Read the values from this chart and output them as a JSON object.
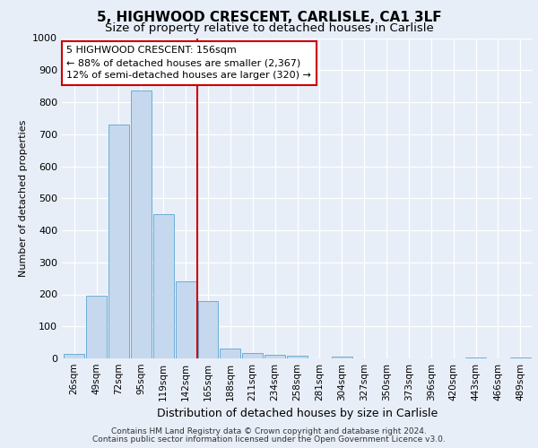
{
  "title1": "5, HIGHWOOD CRESCENT, CARLISLE, CA1 3LF",
  "title2": "Size of property relative to detached houses in Carlisle",
  "xlabel": "Distribution of detached houses by size in Carlisle",
  "ylabel": "Number of detached properties",
  "categories": [
    "26sqm",
    "49sqm",
    "72sqm",
    "95sqm",
    "119sqm",
    "142sqm",
    "165sqm",
    "188sqm",
    "211sqm",
    "234sqm",
    "258sqm",
    "281sqm",
    "304sqm",
    "327sqm",
    "350sqm",
    "373sqm",
    "396sqm",
    "420sqm",
    "443sqm",
    "466sqm",
    "489sqm"
  ],
  "values": [
    13,
    195,
    730,
    835,
    450,
    240,
    178,
    30,
    18,
    10,
    7,
    0,
    5,
    0,
    0,
    0,
    0,
    0,
    4,
    0,
    4
  ],
  "bar_color": "#c5d8ee",
  "bar_edgecolor": "#6baed6",
  "annotation_line1": "5 HIGHWOOD CRESCENT: 156sqm",
  "annotation_line2": "← 88% of detached houses are smaller (2,367)",
  "annotation_line3": "12% of semi-detached houses are larger (320) →",
  "vline_color": "#cc0000",
  "annotation_box_edgecolor": "#cc0000",
  "ylim": [
    0,
    1000
  ],
  "yticks": [
    0,
    100,
    200,
    300,
    400,
    500,
    600,
    700,
    800,
    900,
    1000
  ],
  "footer1": "Contains HM Land Registry data © Crown copyright and database right 2024.",
  "footer2": "Contains public sector information licensed under the Open Government Licence v3.0.",
  "fig_bg_color": "#e8eef8",
  "plot_bg_color": "#e8eef8",
  "title1_fontsize": 11,
  "title2_fontsize": 9.5,
  "xlabel_fontsize": 9,
  "ylabel_fontsize": 8,
  "tick_fontsize": 7.5,
  "annotation_fontsize": 8,
  "footer_fontsize": 6.5,
  "vline_x_index": 5.5
}
